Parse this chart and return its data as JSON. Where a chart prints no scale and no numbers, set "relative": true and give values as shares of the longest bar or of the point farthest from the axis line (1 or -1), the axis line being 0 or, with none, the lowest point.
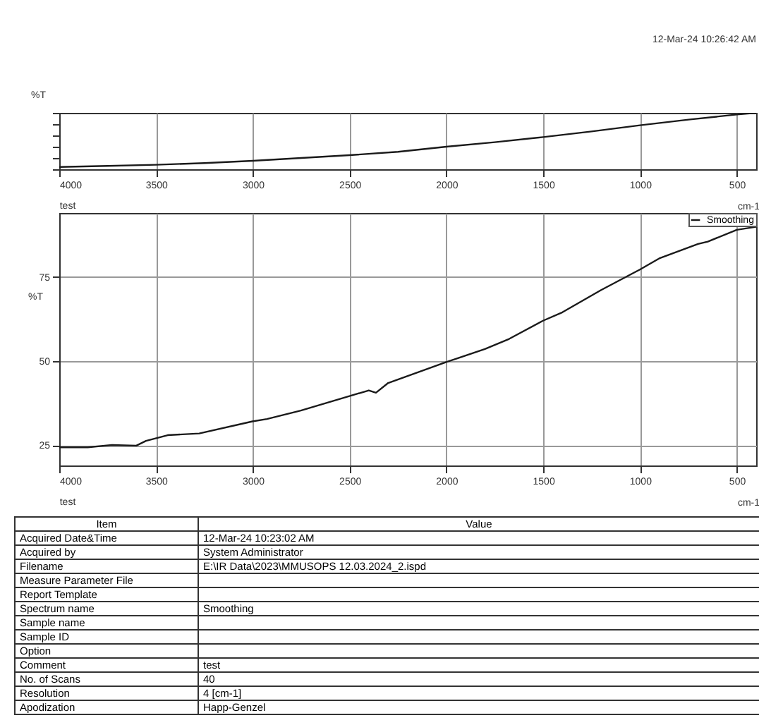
{
  "chart_data": [
    {
      "type": "line",
      "xlabel": "cm-1",
      "ylabel": "%T",
      "relative": true,
      "grid": true,
      "annotations": [
        "12-Mar-24 10:26:42 AM",
        "test"
      ],
      "xlim": [
        4000,
        400
      ],
      "xticks": [
        4000,
        3500,
        3000,
        2500,
        2000,
        1500,
        1000,
        500
      ],
      "x": [
        4000,
        3750,
        3500,
        3250,
        3000,
        2750,
        2500,
        2250,
        2000,
        1750,
        1500,
        1250,
        1000,
        750,
        500,
        400
      ],
      "series": [
        {
          "color": "#1a1a1a",
          "values": [
            0.04,
            0.06,
            0.08,
            0.11,
            0.15,
            0.2,
            0.25,
            0.31,
            0.4,
            0.48,
            0.57,
            0.67,
            0.78,
            0.88,
            0.97,
            1
          ]
        }
      ]
    },
    {
      "type": "line",
      "xlabel": "cm-1",
      "ylabel": "%T",
      "grid": true,
      "legend": "top right",
      "annotations": [
        "test"
      ],
      "xlim": [
        4000,
        400
      ],
      "xticks": [
        4000,
        3500,
        3000,
        2500,
        2000,
        1500,
        1000,
        500
      ],
      "ylim": [
        19,
        94
      ],
      "yticks": [
        25,
        50,
        75
      ],
      "x": [
        4000,
        3852,
        3727,
        3602,
        3552,
        3440,
        3277,
        3002,
        2927,
        2752,
        2501,
        2401,
        2364,
        2301,
        2001,
        1801,
        1676,
        1501,
        1401,
        1201,
        1001,
        901,
        700,
        650,
        500,
        400
      ],
      "series": [
        {
          "name": "Smoothing",
          "color": "#1a1a1a",
          "values": [
            24.4,
            24.4,
            25.1,
            24.9,
            26.3,
            28.0,
            28.5,
            32.1,
            32.8,
            35.3,
            39.6,
            41.3,
            40.6,
            43.5,
            49.7,
            53.6,
            56.6,
            62.0,
            64.5,
            71.1,
            77.2,
            80.5,
            84.8,
            85.5,
            89.0,
            89.9
          ]
        }
      ]
    },
    {
      "type": "other",
      "categories": [
        "Item",
        "Value"
      ],
      "cell_labels": [
        [
          "Acquired Date&Time",
          "12-Mar-24 10:23:02 AM"
        ],
        [
          "Acquired by",
          "System Administrator"
        ],
        [
          "Filename",
          "E:\\IR Data\\2023\\MMUSOPS 12.03.2024_2.ispd"
        ],
        [
          "Measure Parameter File",
          null
        ],
        [
          "Report Template",
          null
        ],
        [
          "Spectrum name",
          "Smoothing"
        ],
        [
          "Sample name",
          null
        ],
        [
          "Sample ID",
          null
        ],
        [
          "Option",
          null
        ],
        [
          "Comment",
          "test"
        ],
        [
          "No. of Scans",
          "40"
        ],
        [
          "Resolution",
          "4 [cm-1]"
        ],
        [
          "Apodization",
          "Happ-Genzel"
        ]
      ]
    }
  ]
}
